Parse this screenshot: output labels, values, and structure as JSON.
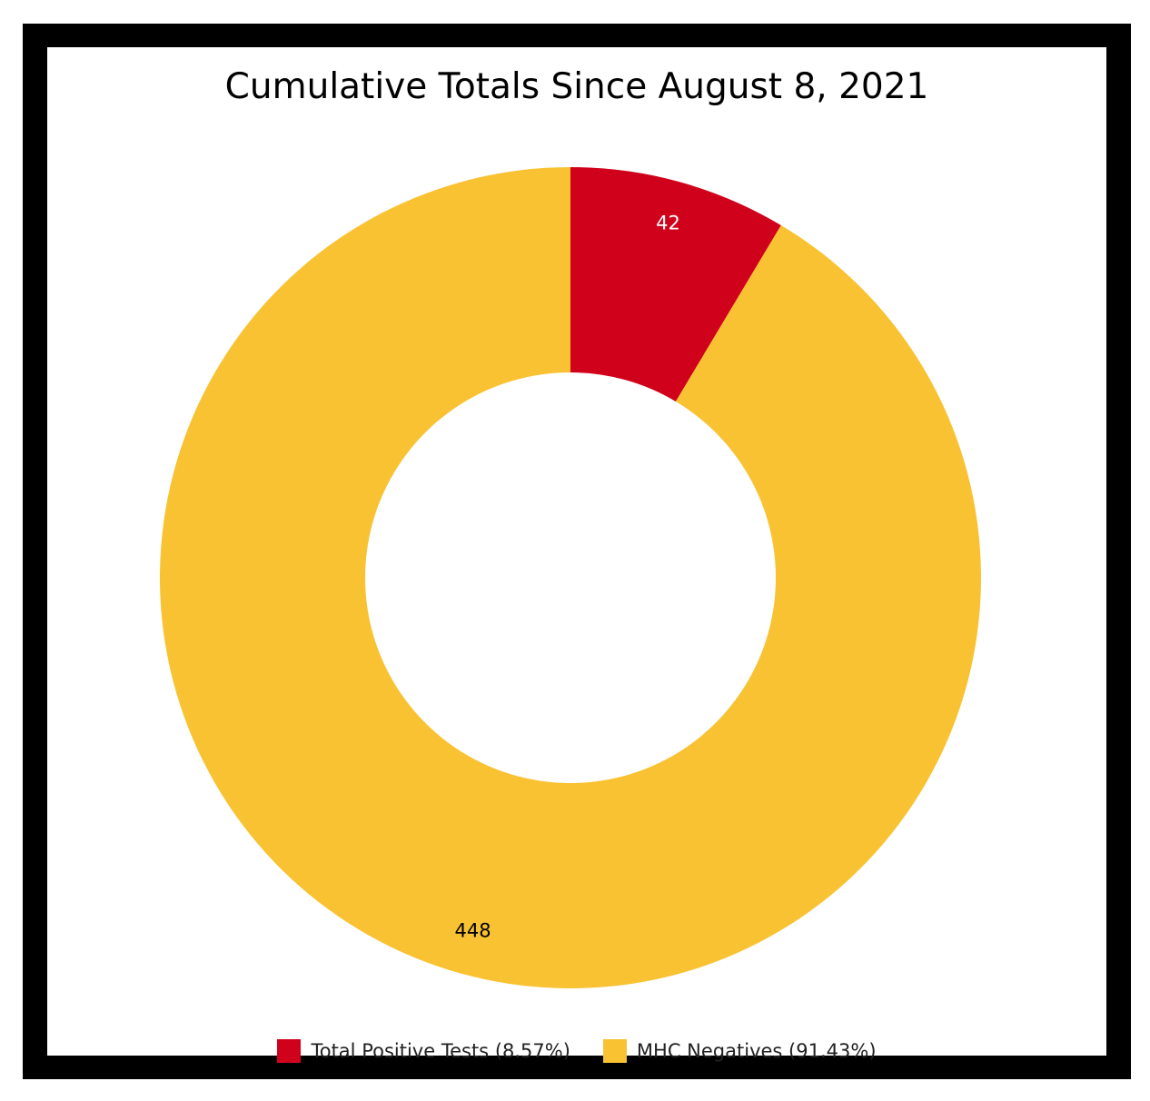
{
  "chart_data": {
    "type": "pie",
    "variant": "donut",
    "title": "Cumulative Totals Since August 8, 2021",
    "slices": [
      {
        "label": "Total Positive Tests",
        "value": 42,
        "percent_label": "(8.57%)",
        "color": "#d0021b",
        "data_label_color": "#ffffff"
      },
      {
        "label": "MHC Negatives",
        "value": 448,
        "percent_label": "(91.43%)",
        "color": "#f8c232",
        "data_label_color": "#000000"
      }
    ],
    "legend_placement": "bottom"
  },
  "colors": {
    "frame": "#000000",
    "background": "#ffffff"
  }
}
